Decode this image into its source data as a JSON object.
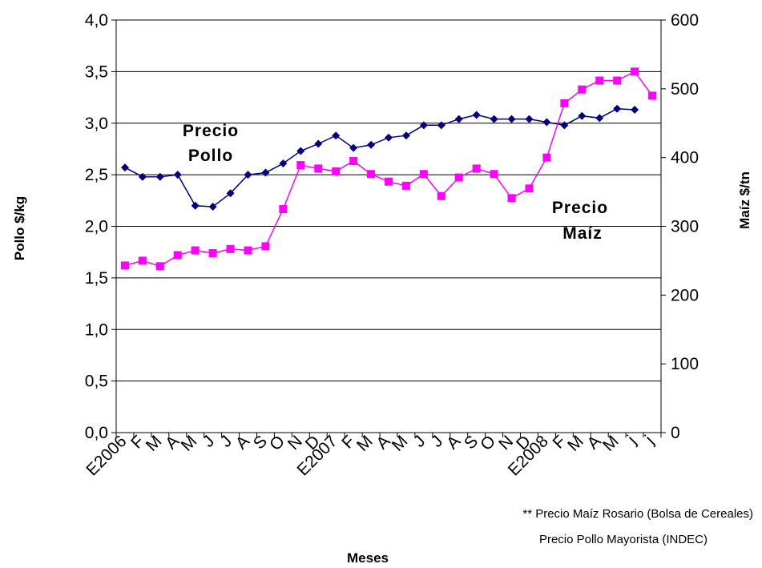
{
  "chart_data": {
    "type": "line",
    "categories": [
      "E2006",
      "F",
      "M",
      "A",
      "M",
      "J",
      "J",
      "A",
      "S",
      "O",
      "N",
      "D",
      "E2007",
      "F",
      "M",
      "A",
      "M",
      "J",
      "J",
      "A",
      "S",
      "O",
      "N",
      "D",
      "E2008",
      "F",
      "M",
      "A",
      "M",
      "j",
      "j"
    ],
    "series": [
      {
        "name": "Precio Pollo",
        "axis": "left",
        "color": "#000080",
        "marker": "diamond",
        "values": [
          2.57,
          2.48,
          2.48,
          2.5,
          2.2,
          2.19,
          2.32,
          2.5,
          2.52,
          2.61,
          2.73,
          2.8,
          2.88,
          2.76,
          2.79,
          2.86,
          2.88,
          2.98,
          2.98,
          3.04,
          3.08,
          3.04,
          3.04,
          3.04,
          3.01,
          2.98,
          3.07,
          3.05,
          3.14,
          3.13,
          null
        ]
      },
      {
        "name": "Precio Maíz",
        "axis": "right",
        "color": "#FF00FF",
        "marker": "square",
        "values": [
          243,
          250,
          242,
          258,
          265,
          261,
          267,
          265,
          271,
          325,
          389,
          384,
          380,
          395,
          376,
          365,
          359,
          376,
          344,
          371,
          384,
          376,
          341,
          355,
          400,
          479,
          499,
          512,
          512,
          525,
          490
        ]
      }
    ],
    "y_left": {
      "label": "Pollo $/kg",
      "ylim": [
        0,
        4
      ],
      "ticks": [
        "0,0",
        "0,5",
        "1,0",
        "1,5",
        "2,0",
        "2,5",
        "3,0",
        "3,5",
        "4,0"
      ]
    },
    "y_right": {
      "label": "Maíz $/tn",
      "ylim": [
        0,
        600
      ],
      "ticks": [
        "0",
        "100",
        "200",
        "300",
        "400",
        "500",
        "600"
      ]
    },
    "xlabel": "Meses",
    "grid": true,
    "annotations": [
      "Precio",
      "Pollo",
      "Precio",
      "Maíz"
    ],
    "notes": [
      "** Precio Maíz Rosario (Bolsa de Cereales)",
      "Precio Pollo Mayorista (INDEC)"
    ]
  }
}
